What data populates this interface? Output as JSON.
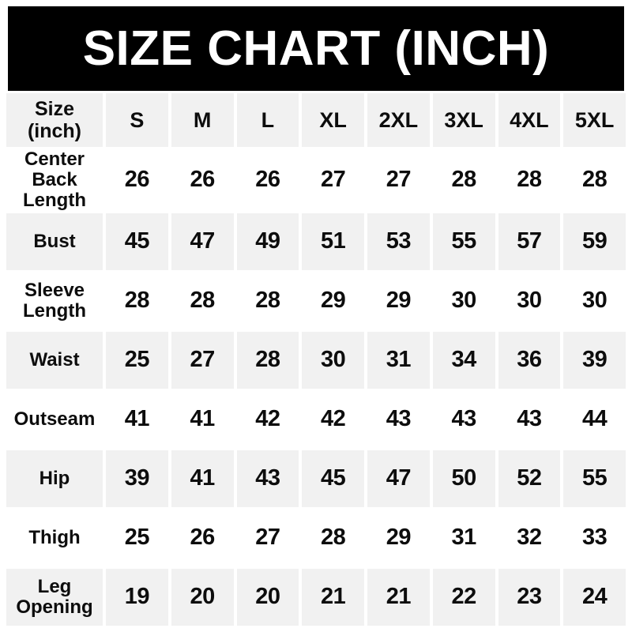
{
  "title": "SIZE CHART (INCH)",
  "colors": {
    "banner_bg": "#000000",
    "banner_text": "#ffffff",
    "cell_bg": "#ffffff",
    "cell_alt_bg": "#f1f1f1",
    "text": "#0d0d0d"
  },
  "table": {
    "corner": {
      "line1": "Size",
      "line2": "(inch)"
    }
  },
  "chart_data": {
    "type": "table",
    "title": "SIZE CHART (INCH)",
    "corner_header": "Size (inch)",
    "columns": [
      "S",
      "M",
      "L",
      "XL",
      "2XL",
      "3XL",
      "4XL",
      "5XL"
    ],
    "rows": [
      {
        "label": "Center Back Length",
        "values": [
          26,
          26,
          26,
          27,
          27,
          28,
          28,
          28
        ]
      },
      {
        "label": "Bust",
        "values": [
          45,
          47,
          49,
          51,
          53,
          55,
          57,
          59
        ]
      },
      {
        "label": "Sleeve Length",
        "values": [
          28,
          28,
          28,
          29,
          29,
          30,
          30,
          30
        ]
      },
      {
        "label": "Waist",
        "values": [
          25,
          27,
          28,
          30,
          31,
          34,
          36,
          39
        ]
      },
      {
        "label": "Outseam",
        "values": [
          41,
          41,
          42,
          42,
          43,
          43,
          43,
          44
        ]
      },
      {
        "label": "Hip",
        "values": [
          39,
          41,
          43,
          45,
          47,
          50,
          52,
          55
        ]
      },
      {
        "label": "Thigh",
        "values": [
          25,
          26,
          27,
          28,
          29,
          31,
          32,
          33
        ]
      },
      {
        "label": "Leg Opening",
        "values": [
          19,
          20,
          20,
          21,
          21,
          22,
          23,
          24
        ]
      }
    ],
    "layout": {
      "header_background": "#f1f1f1",
      "row_striping": [
        "#ffffff",
        "#f1f1f1"
      ],
      "grid": "white-gaps-between-cells"
    }
  }
}
